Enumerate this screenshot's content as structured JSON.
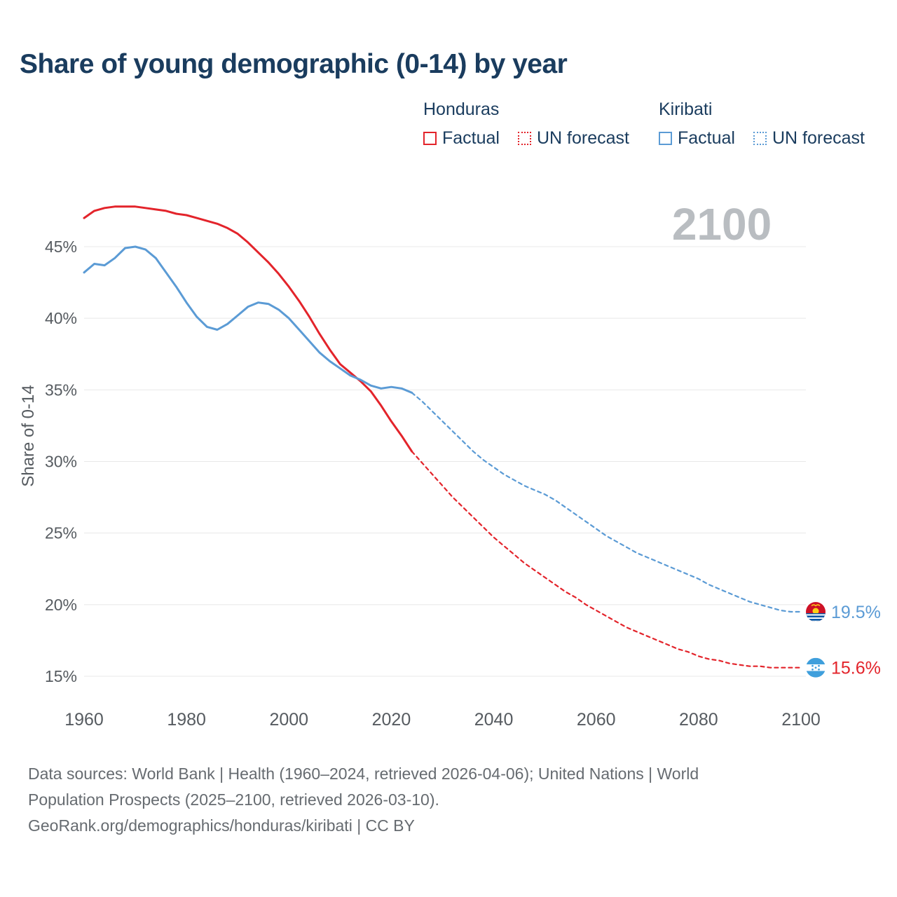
{
  "title": "Share of young demographic (0-14) by year",
  "watermark": "2100",
  "legend": {
    "groups": [
      {
        "country": "Honduras",
        "color": "#e3242b",
        "items": [
          {
            "label": "Factual",
            "style": "solid"
          },
          {
            "label": "UN forecast",
            "style": "dashed"
          }
        ]
      },
      {
        "country": "Kiribati",
        "color": "#5b9bd5",
        "items": [
          {
            "label": "Factual",
            "style": "solid"
          },
          {
            "label": "UN forecast",
            "style": "dashed"
          }
        ]
      }
    ]
  },
  "footer": {
    "line1": "Data sources: World Bank | Health (1960–2024, retrieved 2026-04-06); United Nations | World",
    "line2": "Population Prospects (2025–2100, retrieved 2026-03-10).",
    "line3": "GeoRank.org/demographics/honduras/kiribati | CC BY"
  },
  "chart_data": {
    "type": "line",
    "title": "Share of young demographic (0-14) by year",
    "xlabel": "",
    "ylabel": "Share of 0-14",
    "xlim": [
      1960,
      2100
    ],
    "ylim": [
      13,
      49
    ],
    "grid": "horizontal",
    "legend_position": "top-right",
    "yticks": [
      15,
      20,
      25,
      30,
      35,
      40,
      45
    ],
    "ytick_labels": [
      "15%",
      "20%",
      "25%",
      "30%",
      "35%",
      "40%",
      "45%"
    ],
    "xticks": [
      1960,
      1980,
      2000,
      2020,
      2040,
      2060,
      2080,
      2100
    ],
    "series": [
      {
        "name": "Honduras Factual",
        "color": "#e3242b",
        "dash": "solid",
        "x": [
          1960,
          1962,
          1964,
          1966,
          1968,
          1970,
          1972,
          1974,
          1976,
          1978,
          1980,
          1982,
          1984,
          1986,
          1988,
          1990,
          1992,
          1994,
          1996,
          1998,
          2000,
          2002,
          2004,
          2006,
          2008,
          2010,
          2012,
          2014,
          2016,
          2018,
          2020,
          2022,
          2024
        ],
        "y": [
          47.0,
          47.5,
          47.7,
          47.8,
          47.8,
          47.8,
          47.7,
          47.6,
          47.5,
          47.3,
          47.2,
          47.0,
          46.8,
          46.6,
          46.3,
          45.9,
          45.3,
          44.6,
          43.9,
          43.1,
          42.2,
          41.2,
          40.1,
          38.9,
          37.8,
          36.8,
          36.2,
          35.6,
          34.9,
          33.9,
          32.8,
          31.8,
          30.7
        ]
      },
      {
        "name": "Honduras UN forecast",
        "color": "#e3242b",
        "dash": "dashed",
        "x": [
          2024,
          2026,
          2028,
          2030,
          2032,
          2034,
          2036,
          2038,
          2040,
          2042,
          2044,
          2046,
          2048,
          2050,
          2052,
          2054,
          2056,
          2058,
          2060,
          2062,
          2064,
          2066,
          2068,
          2070,
          2072,
          2074,
          2076,
          2078,
          2080,
          2082,
          2084,
          2086,
          2088,
          2090,
          2092,
          2094,
          2096,
          2098,
          2100
        ],
        "y": [
          30.7,
          29.9,
          29.1,
          28.3,
          27.5,
          26.8,
          26.1,
          25.4,
          24.7,
          24.1,
          23.5,
          22.9,
          22.4,
          21.9,
          21.4,
          20.9,
          20.5,
          20.0,
          19.6,
          19.2,
          18.8,
          18.4,
          18.1,
          17.8,
          17.5,
          17.2,
          16.9,
          16.7,
          16.4,
          16.2,
          16.1,
          15.9,
          15.8,
          15.7,
          15.7,
          15.6,
          15.6,
          15.6,
          15.6
        ]
      },
      {
        "name": "Kiribati Factual",
        "color": "#5b9bd5",
        "dash": "solid",
        "x": [
          1960,
          1962,
          1964,
          1966,
          1968,
          1970,
          1972,
          1974,
          1976,
          1978,
          1980,
          1982,
          1984,
          1986,
          1988,
          1990,
          1992,
          1994,
          1996,
          1998,
          2000,
          2002,
          2004,
          2006,
          2008,
          2010,
          2012,
          2014,
          2016,
          2018,
          2020,
          2022,
          2024
        ],
        "y": [
          43.2,
          43.8,
          43.7,
          44.2,
          44.9,
          45.0,
          44.8,
          44.2,
          43.2,
          42.2,
          41.1,
          40.1,
          39.4,
          39.2,
          39.6,
          40.2,
          40.8,
          41.1,
          41.0,
          40.6,
          40.0,
          39.2,
          38.4,
          37.6,
          37.0,
          36.5,
          36.0,
          35.7,
          35.3,
          35.1,
          35.2,
          35.1,
          34.8
        ]
      },
      {
        "name": "Kiribati UN forecast",
        "color": "#5b9bd5",
        "dash": "dashed",
        "x": [
          2024,
          2026,
          2028,
          2030,
          2032,
          2034,
          2036,
          2038,
          2040,
          2042,
          2044,
          2046,
          2048,
          2050,
          2052,
          2054,
          2056,
          2058,
          2060,
          2062,
          2064,
          2066,
          2068,
          2070,
          2072,
          2074,
          2076,
          2078,
          2080,
          2082,
          2084,
          2086,
          2088,
          2090,
          2092,
          2094,
          2096,
          2098,
          2100
        ],
        "y": [
          34.8,
          34.2,
          33.5,
          32.8,
          32.1,
          31.4,
          30.7,
          30.1,
          29.6,
          29.1,
          28.7,
          28.3,
          28.0,
          27.7,
          27.3,
          26.8,
          26.3,
          25.8,
          25.3,
          24.8,
          24.4,
          24.0,
          23.6,
          23.3,
          23.0,
          22.7,
          22.4,
          22.1,
          21.8,
          21.4,
          21.1,
          20.8,
          20.5,
          20.2,
          20.0,
          19.8,
          19.6,
          19.5,
          19.5
        ]
      }
    ],
    "end_labels": [
      {
        "text": "19.5%",
        "value": 19.5,
        "color": "#5b9bd5",
        "flag": "kiribati"
      },
      {
        "text": "15.6%",
        "value": 15.6,
        "color": "#e3242b",
        "flag": "honduras"
      }
    ]
  }
}
